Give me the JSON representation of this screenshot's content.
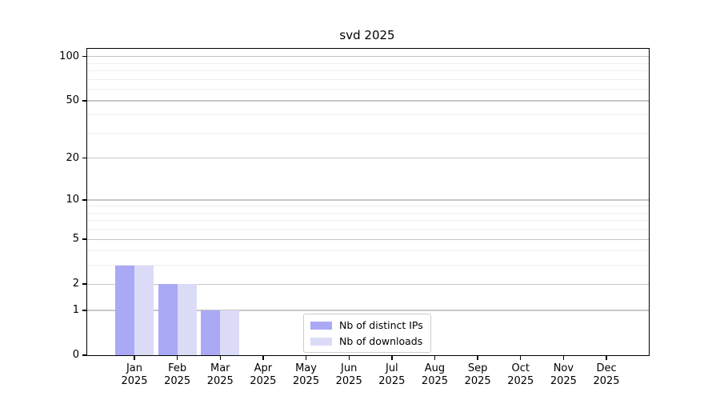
{
  "title": "svd 2025",
  "chart_data": {
    "type": "bar",
    "title": "svd 2025",
    "categories": [
      {
        "month": "Jan",
        "year": "2025"
      },
      {
        "month": "Feb",
        "year": "2025"
      },
      {
        "month": "Mar",
        "year": "2025"
      },
      {
        "month": "Apr",
        "year": "2025"
      },
      {
        "month": "May",
        "year": "2025"
      },
      {
        "month": "Jun",
        "year": "2025"
      },
      {
        "month": "Jul",
        "year": "2025"
      },
      {
        "month": "Aug",
        "year": "2025"
      },
      {
        "month": "Sep",
        "year": "2025"
      },
      {
        "month": "Oct",
        "year": "2025"
      },
      {
        "month": "Nov",
        "year": "2025"
      },
      {
        "month": "Dec",
        "year": "2025"
      }
    ],
    "series": [
      {
        "name": "Nb of distinct IPs",
        "color": "#a9a9f5",
        "values": [
          3,
          2,
          1,
          0,
          0,
          0,
          0,
          0,
          0,
          0,
          0,
          0
        ]
      },
      {
        "name": "Nb of downloads",
        "color": "#dbdbf8",
        "values": [
          3,
          2,
          1,
          0,
          0,
          0,
          0,
          0,
          0,
          0,
          0,
          0
        ]
      }
    ],
    "yscale": "log1p",
    "ylim": [
      0,
      113
    ],
    "y_major_ticks": [
      0,
      1,
      2,
      5,
      10,
      20,
      50,
      100
    ],
    "y_minor_ticks": [
      3,
      4,
      6,
      7,
      8,
      9,
      30,
      40,
      60,
      70,
      80,
      90
    ],
    "grid": true,
    "legend_position": "lower-center"
  },
  "colors": {
    "axis": "#000000",
    "grid_major": "#c6c6c6",
    "grid_minor": "#eeeeee",
    "legend_border": "#cccccc",
    "background": "#ffffff"
  }
}
